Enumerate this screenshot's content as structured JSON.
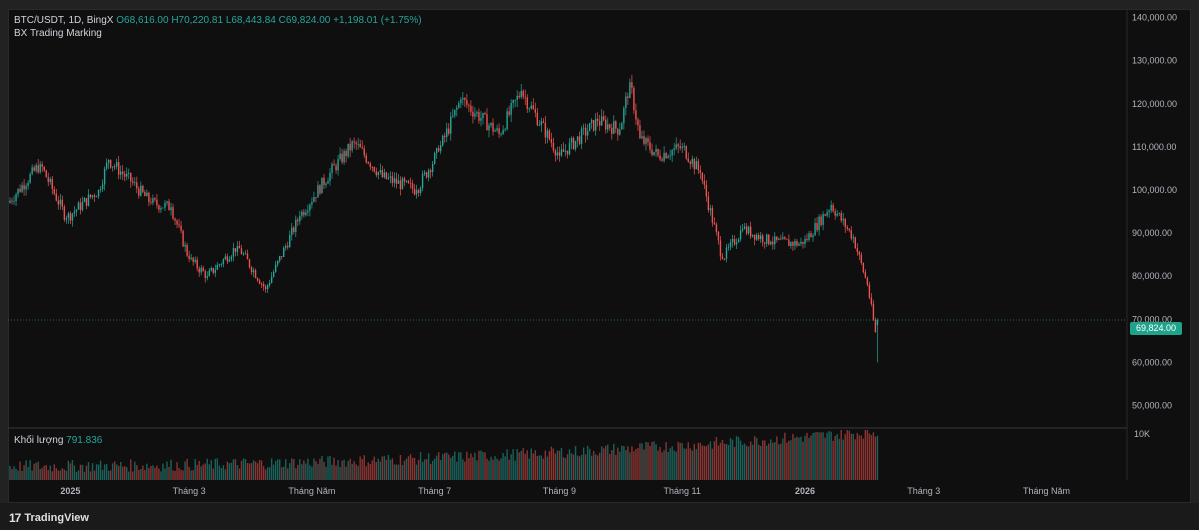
{
  "legend": {
    "symbol": "BTC/USDT, 1D, BingX",
    "open": "O68,616.00",
    "high": "H70,220.81",
    "low": "L68,443.84",
    "close": "C69,824.00",
    "change": "+1,198.01 (+1.75%)",
    "indicator": "BX Trading Marking"
  },
  "volume_legend": {
    "label": "Khối lượng",
    "value": "791.836"
  },
  "price_tag": "69,824.00",
  "footer": {
    "brand": "TradingView",
    "brand_mark": "17"
  },
  "colors": {
    "up": "#26a69a",
    "down": "#ef5350",
    "background": "#0f0f0f",
    "text": "#d1d4dc"
  },
  "chart_data": {
    "type": "candlestick",
    "title": "BTC/USDT, 1D, BingX",
    "ylim": [
      45000,
      142000
    ],
    "y_ticks": [
      "140,000.00",
      "130,000.00",
      "120,000.00",
      "110,000.00",
      "100,000.00",
      "90,000.00",
      "80,000.00",
      "70,000.00",
      "60,000.00",
      "50,000.00"
    ],
    "y_tick_values": [
      140000,
      130000,
      120000,
      110000,
      100000,
      90000,
      80000,
      70000,
      60000,
      50000
    ],
    "x_ticks": [
      {
        "label": "2025",
        "date": "2025-01-01"
      },
      {
        "label": "Tháng 3",
        "date": "2025-03-01"
      },
      {
        "label": "Tháng Năm",
        "date": "2025-05-01"
      },
      {
        "label": "Tháng 7",
        "date": "2025-07-01"
      },
      {
        "label": "Tháng 9",
        "date": "2025-09-01"
      },
      {
        "label": "Tháng 11",
        "date": "2025-11-01"
      },
      {
        "label": "2026",
        "date": "2026-01-01"
      },
      {
        "label": "Tháng 3",
        "date": "2026-03-01"
      },
      {
        "label": "Tháng Năm",
        "date": "2026-05-01"
      }
    ],
    "x_range": [
      "2024-12-01",
      "2026-06-10"
    ],
    "volume_tick": "10K",
    "volume_max": 10000,
    "last_price": 69824,
    "close_path": [
      {
        "date": "2024-12-01",
        "close": 97000
      },
      {
        "date": "2024-12-17",
        "close": 106000
      },
      {
        "date": "2024-12-30",
        "close": 93500
      },
      {
        "date": "2025-01-15",
        "close": 100000
      },
      {
        "date": "2025-01-20",
        "close": 107000
      },
      {
        "date": "2025-01-31",
        "close": 102000
      },
      {
        "date": "2025-02-10",
        "close": 97000
      },
      {
        "date": "2025-02-20",
        "close": 96000
      },
      {
        "date": "2025-03-01",
        "close": 84000
      },
      {
        "date": "2025-03-10",
        "close": 80000
      },
      {
        "date": "2025-03-25",
        "close": 87000
      },
      {
        "date": "2025-04-08",
        "close": 77000
      },
      {
        "date": "2025-04-25",
        "close": 94000
      },
      {
        "date": "2025-05-10",
        "close": 104000
      },
      {
        "date": "2025-05-22",
        "close": 111000
      },
      {
        "date": "2025-06-05",
        "close": 103000
      },
      {
        "date": "2025-06-22",
        "close": 100000
      },
      {
        "date": "2025-07-03",
        "close": 109000
      },
      {
        "date": "2025-07-14",
        "close": 121000
      },
      {
        "date": "2025-08-02",
        "close": 113000
      },
      {
        "date": "2025-08-13",
        "close": 123000
      },
      {
        "date": "2025-09-01",
        "close": 108000
      },
      {
        "date": "2025-09-20",
        "close": 116000
      },
      {
        "date": "2025-10-01",
        "close": 114000
      },
      {
        "date": "2025-10-06",
        "close": 125000
      },
      {
        "date": "2025-10-11",
        "close": 112000
      },
      {
        "date": "2025-10-20",
        "close": 108000
      },
      {
        "date": "2025-11-01",
        "close": 110000
      },
      {
        "date": "2025-11-10",
        "close": 104000
      },
      {
        "date": "2025-11-21",
        "close": 84000
      },
      {
        "date": "2025-12-01",
        "close": 91000
      },
      {
        "date": "2025-12-15",
        "close": 88000
      },
      {
        "date": "2025-12-31",
        "close": 87500
      },
      {
        "date": "2026-01-14",
        "close": 96500
      },
      {
        "date": "2026-01-25",
        "close": 89000
      },
      {
        "date": "2026-02-01",
        "close": 78000
      },
      {
        "date": "2026-02-05",
        "close": 67000
      },
      {
        "date": "2026-02-06",
        "close": 69824
      }
    ]
  }
}
